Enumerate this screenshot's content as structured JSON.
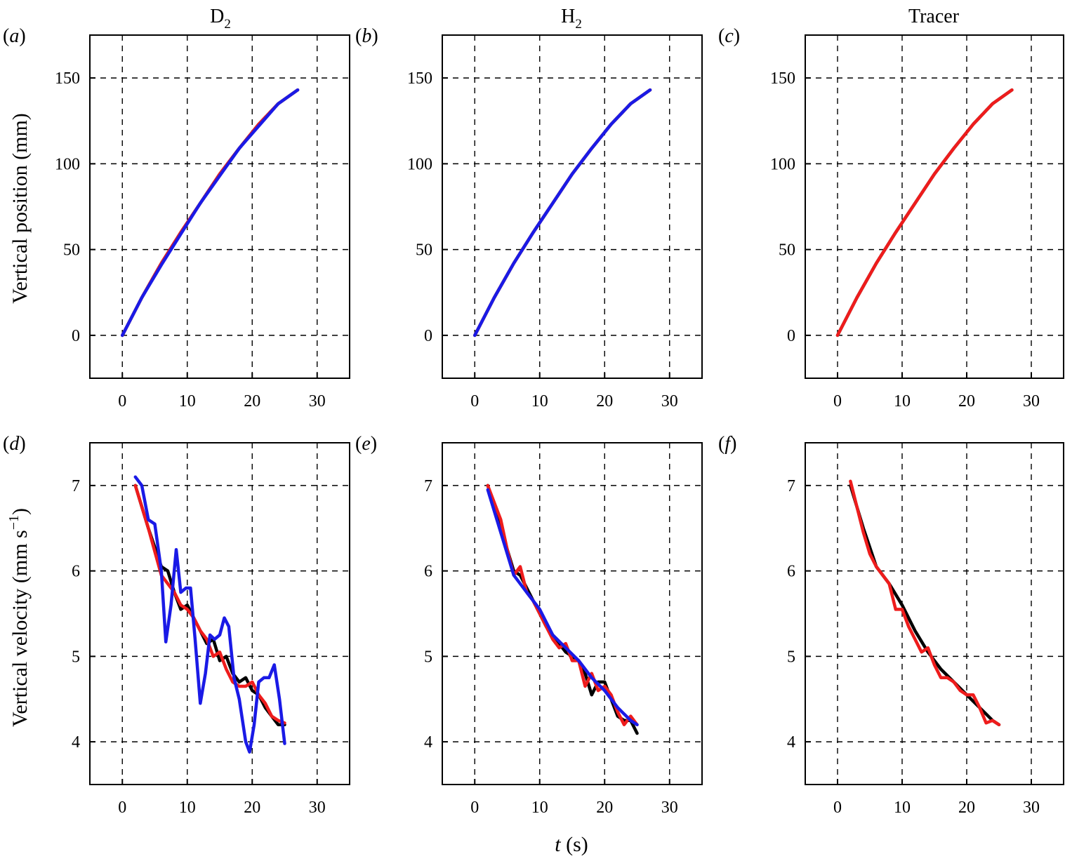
{
  "columns": [
    {
      "title_main": "D",
      "title_sub": "2"
    },
    {
      "title_main": "H",
      "title_sub": "2"
    },
    {
      "title_main": "Tracer",
      "title_sub": ""
    }
  ],
  "row_titles": {
    "position": "Vertical position (mm)",
    "velocity_main": "Vertical velocity (mm s",
    "velocity_sup": "−1",
    "velocity_end": ")"
  },
  "x_axis_title": {
    "italic": "t",
    "rest": " (s)"
  },
  "colors": {
    "black": "#000000",
    "red": "#ee1c1c",
    "blue": "#1a1ae6"
  },
  "chart_data": [
    {
      "panel": "(a)",
      "type": "line",
      "row": "position",
      "col": 0,
      "xlim": [
        -5,
        35
      ],
      "ylim": [
        -25,
        175
      ],
      "xticks": [
        0,
        10,
        20,
        30
      ],
      "yticks": [
        0,
        50,
        100,
        150
      ],
      "grid": true,
      "series": [
        {
          "color": "black",
          "x": [
            0,
            3,
            6,
            9,
            12,
            15,
            18,
            21,
            24,
            27
          ],
          "y": [
            0,
            22,
            42,
            60,
            77,
            94,
            109,
            123,
            135,
            143
          ]
        },
        {
          "color": "red",
          "x": [
            0,
            3,
            6,
            9,
            12,
            15,
            18,
            21,
            24,
            27
          ],
          "y": [
            0,
            22,
            42,
            60,
            77,
            94,
            109,
            123,
            135,
            143
          ]
        },
        {
          "color": "blue",
          "x": [
            0,
            3,
            6,
            9,
            12,
            15,
            18,
            21,
            24,
            27
          ],
          "y": [
            0,
            22,
            41,
            59,
            77,
            93,
            109,
            122,
            135,
            143
          ]
        }
      ]
    },
    {
      "panel": "(b)",
      "type": "line",
      "row": "position",
      "col": 1,
      "xlim": [
        -5,
        35
      ],
      "ylim": [
        -25,
        175
      ],
      "xticks": [
        0,
        10,
        20,
        30
      ],
      "yticks": [
        0,
        50,
        100,
        150
      ],
      "grid": true,
      "series": [
        {
          "color": "black",
          "x": [
            0,
            3,
            6,
            9,
            12,
            15,
            18,
            21,
            24,
            27
          ],
          "y": [
            0,
            22,
            42,
            60,
            77,
            94,
            109,
            123,
            135,
            143
          ]
        },
        {
          "color": "red",
          "x": [
            0,
            3,
            6,
            9,
            12,
            15,
            18,
            21,
            24,
            27
          ],
          "y": [
            0,
            22,
            42,
            60,
            77,
            94,
            109,
            123,
            135,
            143
          ]
        },
        {
          "color": "blue",
          "x": [
            0,
            3,
            6,
            9,
            12,
            15,
            18,
            21,
            24,
            27
          ],
          "y": [
            0,
            22,
            42,
            60,
            77,
            94,
            109,
            123,
            135,
            143
          ]
        }
      ]
    },
    {
      "panel": "(c)",
      "type": "line",
      "row": "position",
      "col": 2,
      "xlim": [
        -5,
        35
      ],
      "ylim": [
        -25,
        175
      ],
      "xticks": [
        0,
        10,
        20,
        30
      ],
      "yticks": [
        0,
        50,
        100,
        150
      ],
      "grid": true,
      "series": [
        {
          "color": "black",
          "x": [
            0,
            3,
            6,
            9,
            12,
            15,
            18,
            21,
            24,
            27
          ],
          "y": [
            0,
            22,
            42,
            60,
            77,
            94,
            109,
            123,
            135,
            143
          ]
        },
        {
          "color": "red",
          "x": [
            0,
            3,
            6,
            9,
            12,
            15,
            18,
            21,
            24,
            27
          ],
          "y": [
            0,
            22,
            42,
            60,
            77,
            94,
            109,
            123,
            135,
            143
          ]
        }
      ]
    },
    {
      "panel": "(d)",
      "type": "line",
      "row": "velocity",
      "col": 0,
      "xlim": [
        -5,
        35
      ],
      "ylim": [
        3.5,
        7.5
      ],
      "xticks": [
        0,
        10,
        20,
        30
      ],
      "yticks": [
        4,
        5,
        6,
        7
      ],
      "grid": true,
      "series": [
        {
          "color": "black",
          "x": [
            2,
            4,
            6,
            7,
            8,
            9,
            10,
            11,
            12,
            13,
            14,
            15,
            16,
            17,
            18,
            19,
            20,
            21,
            22,
            23,
            24,
            25
          ],
          "y": [
            7.0,
            6.5,
            6.05,
            6.0,
            5.75,
            5.55,
            5.6,
            5.45,
            5.3,
            5.15,
            5.2,
            4.95,
            5.0,
            4.8,
            4.7,
            4.75,
            4.6,
            4.55,
            4.4,
            4.3,
            4.2,
            4.2
          ]
        },
        {
          "color": "red",
          "x": [
            2,
            4,
            6,
            8,
            9,
            10,
            11,
            12,
            13,
            14,
            15,
            16,
            17,
            18,
            19,
            20,
            21,
            22,
            23,
            24,
            25
          ],
          "y": [
            7.0,
            6.5,
            5.95,
            5.75,
            5.6,
            5.55,
            5.45,
            5.3,
            5.2,
            5.0,
            5.05,
            4.85,
            4.7,
            4.65,
            4.65,
            4.7,
            4.55,
            4.45,
            4.3,
            4.25,
            4.22
          ]
        },
        {
          "color": "blue",
          "x": [
            2,
            3,
            4,
            5,
            6,
            6.7,
            7.5,
            8.3,
            9,
            9.8,
            10.5,
            11.2,
            12,
            12.8,
            13.5,
            14.2,
            15,
            15.7,
            16.4,
            17.2,
            18,
            19,
            19.6,
            20.3,
            21,
            21.8,
            22.6,
            23.4,
            24.2,
            25
          ],
          "y": [
            7.1,
            7.0,
            6.6,
            6.55,
            6.0,
            5.17,
            5.6,
            6.25,
            5.75,
            5.8,
            5.8,
            5.2,
            4.45,
            4.8,
            5.25,
            5.2,
            5.25,
            5.45,
            5.35,
            4.75,
            4.5,
            4.0,
            3.88,
            4.2,
            4.7,
            4.75,
            4.75,
            4.9,
            4.5,
            3.98
          ]
        }
      ]
    },
    {
      "panel": "(e)",
      "type": "line",
      "row": "velocity",
      "col": 1,
      "xlim": [
        -5,
        35
      ],
      "ylim": [
        3.5,
        7.5
      ],
      "xticks": [
        0,
        10,
        20,
        30
      ],
      "yticks": [
        4,
        5,
        6,
        7
      ],
      "grid": true,
      "series": [
        {
          "color": "black",
          "x": [
            2,
            4,
            6,
            7,
            8,
            9,
            10,
            11,
            12,
            13,
            14,
            15,
            16,
            17,
            18,
            19,
            20,
            21,
            22,
            23,
            24,
            25
          ],
          "y": [
            7.0,
            6.5,
            6.0,
            5.95,
            5.8,
            5.65,
            5.5,
            5.35,
            5.25,
            5.15,
            5.05,
            5.0,
            4.95,
            4.8,
            4.55,
            4.7,
            4.7,
            4.5,
            4.3,
            4.25,
            4.25,
            4.1
          ]
        },
        {
          "color": "red",
          "x": [
            2,
            3,
            4,
            5,
            6,
            7,
            8,
            9,
            10,
            11,
            12,
            13,
            14,
            15,
            16,
            17,
            18,
            19,
            20,
            21,
            22,
            23,
            24,
            25
          ],
          "y": [
            7.0,
            6.8,
            6.6,
            6.25,
            5.95,
            6.05,
            5.75,
            5.65,
            5.5,
            5.35,
            5.2,
            5.1,
            5.15,
            4.95,
            4.95,
            4.65,
            4.8,
            4.6,
            4.65,
            4.55,
            4.35,
            4.2,
            4.3,
            4.2
          ]
        },
        {
          "color": "blue",
          "x": [
            2,
            4,
            6,
            8,
            10,
            12,
            14,
            16,
            18,
            20,
            22,
            24,
            25
          ],
          "y": [
            6.95,
            6.45,
            5.95,
            5.75,
            5.55,
            5.25,
            5.1,
            4.95,
            4.75,
            4.6,
            4.4,
            4.25,
            4.2
          ]
        }
      ]
    },
    {
      "panel": "(f)",
      "type": "line",
      "row": "velocity",
      "col": 2,
      "xlim": [
        -5,
        35
      ],
      "ylim": [
        3.5,
        7.5
      ],
      "xticks": [
        0,
        10,
        20,
        30
      ],
      "yticks": [
        4,
        5,
        6,
        7
      ],
      "grid": true,
      "series": [
        {
          "color": "black",
          "x": [
            2,
            4,
            6,
            8,
            10,
            12,
            14,
            16,
            18,
            20,
            22,
            24,
            25
          ],
          "y": [
            7.0,
            6.5,
            6.05,
            5.85,
            5.6,
            5.3,
            5.05,
            4.85,
            4.7,
            4.55,
            4.4,
            4.25,
            4.2
          ]
        },
        {
          "color": "red",
          "x": [
            2,
            3,
            4,
            5,
            6,
            7,
            8,
            9,
            10,
            11,
            12,
            13,
            14,
            15,
            16,
            17,
            18,
            19,
            20,
            21,
            22,
            23,
            24,
            25
          ],
          "y": [
            7.05,
            6.75,
            6.45,
            6.2,
            6.05,
            5.95,
            5.85,
            5.55,
            5.55,
            5.35,
            5.2,
            5.05,
            5.1,
            4.9,
            4.75,
            4.75,
            4.7,
            4.6,
            4.55,
            4.55,
            4.4,
            4.22,
            4.25,
            4.2
          ]
        }
      ]
    }
  ]
}
